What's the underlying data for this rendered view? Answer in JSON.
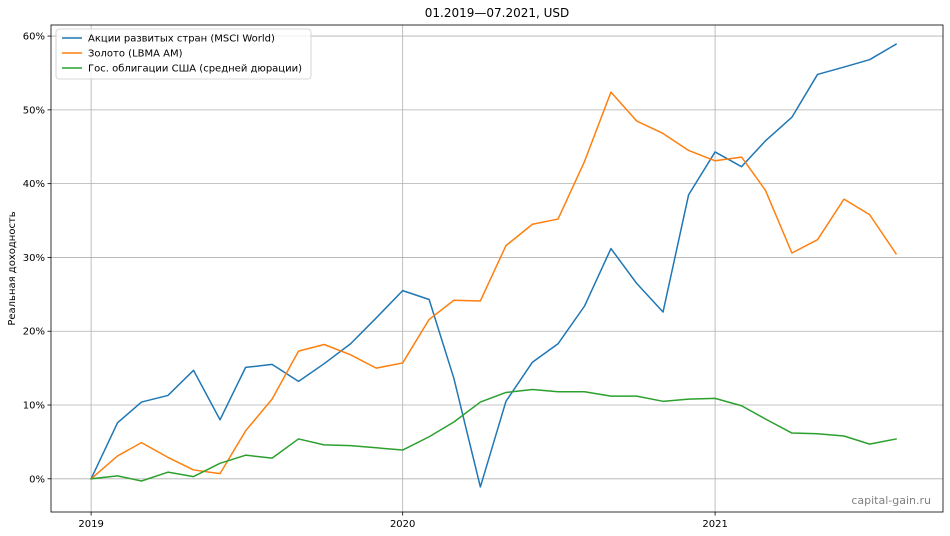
{
  "chart_data": {
    "type": "line",
    "title": "01.2019—07.2021, USD",
    "ylabel": "Реальная доходность",
    "xlabel": "",
    "x_start": "2019-01",
    "x_step": "month",
    "x_ticks": [
      "2019",
      "2020",
      "2021"
    ],
    "y_ticks": [
      {
        "value": 0,
        "label": "0%"
      },
      {
        "value": 10,
        "label": "10%"
      },
      {
        "value": 20,
        "label": "20%"
      },
      {
        "value": 30,
        "label": "30%"
      },
      {
        "value": 40,
        "label": "40%"
      },
      {
        "value": 50,
        "label": "50%"
      },
      {
        "value": 60,
        "label": "60%"
      }
    ],
    "xlim": [
      "2018-11-15",
      "2021-09-25"
    ],
    "ylim": [
      -4.5,
      61.5
    ],
    "grid": true,
    "legend_position": "top-left",
    "series": [
      {
        "name": "Акции развитых стран (MSCI World)",
        "color": "#1f77b4",
        "values": [
          0,
          7.6,
          10.4,
          11.3,
          14.7,
          8.0,
          15.1,
          15.5,
          13.2,
          15.6,
          18.3,
          21.8,
          25.5,
          24.3,
          13.6,
          -1.1,
          10.5,
          15.8,
          18.3,
          23.4,
          31.2,
          26.5,
          22.6,
          38.5,
          44.3,
          42.3,
          45.8,
          49.0,
          54.8,
          55.8,
          56.8,
          58.9
        ]
      },
      {
        "name": "Золото (LBMA AM)",
        "color": "#ff7f0e",
        "values": [
          0,
          3.1,
          4.9,
          2.9,
          1.2,
          0.7,
          6.5,
          10.8,
          17.3,
          18.2,
          16.8,
          15.0,
          15.7,
          21.6,
          24.2,
          24.1,
          31.6,
          34.5,
          35.2,
          43.0,
          52.4,
          48.5,
          46.8,
          44.5,
          43.1,
          43.6,
          39.1,
          30.6,
          32.4,
          37.9,
          35.8,
          30.5
        ]
      },
      {
        "name": "Гос. облигации США (средней дюрации)",
        "color": "#2ca02c",
        "values": [
          0,
          0.4,
          -0.3,
          0.9,
          0.3,
          2.1,
          3.2,
          2.8,
          5.4,
          4.6,
          4.5,
          4.2,
          3.9,
          5.7,
          7.7,
          10.4,
          11.7,
          12.1,
          11.8,
          11.8,
          11.2,
          11.2,
          10.5,
          10.8,
          10.9,
          9.9,
          8.1,
          6.2,
          6.1,
          5.8,
          4.7,
          5.4
        ]
      }
    ]
  },
  "watermark": "capital-gain.ru"
}
